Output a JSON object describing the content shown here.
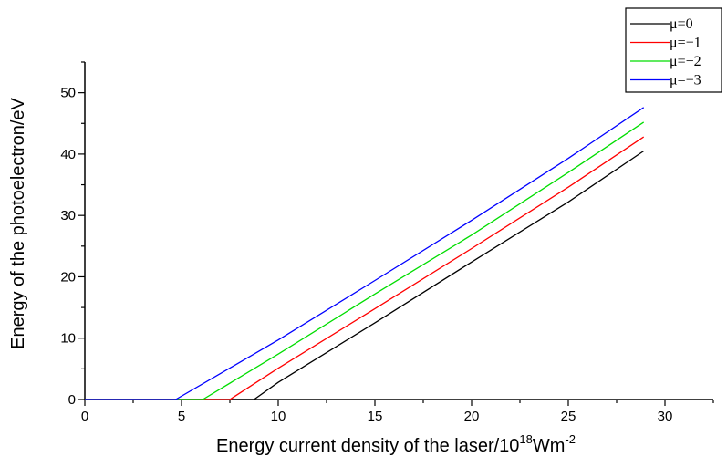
{
  "chart_data": {
    "type": "line",
    "title": "",
    "xlabel": "Energy current density of the laser/10",
    "xlabel_sup1": "18",
    "xlabel_mid": "Wm",
    "xlabel_sup2": "-2",
    "ylabel": "Energy of the photoelectron/eV",
    "xlim": [
      0,
      32.5
    ],
    "ylim": [
      0,
      55
    ],
    "xticks": [
      0,
      5,
      10,
      15,
      20,
      25,
      30
    ],
    "yticks": [
      0,
      10,
      20,
      30,
      40,
      50
    ],
    "legend_position": "top-right",
    "series": [
      {
        "name": "μ=0",
        "color": "#000000",
        "x": [
          0,
          8.75,
          10,
          15,
          20,
          25,
          28.9
        ],
        "y": [
          0,
          0,
          2.8,
          12.5,
          22.4,
          32.2,
          40.5
        ]
      },
      {
        "name": "μ=−1",
        "color": "#ff0000",
        "x": [
          0,
          7.5,
          10,
          15,
          20,
          25,
          28.9
        ],
        "y": [
          0,
          0,
          5.1,
          14.8,
          24.6,
          34.6,
          42.8
        ]
      },
      {
        "name": "μ=−2",
        "color": "#00dd00",
        "x": [
          0,
          6.1,
          10,
          15,
          20,
          25,
          28.9
        ],
        "y": [
          0,
          0,
          7.4,
          17.2,
          26.8,
          37.0,
          45.2
        ]
      },
      {
        "name": "μ=−3",
        "color": "#0000ff",
        "x": [
          0,
          4.7,
          10,
          15,
          20,
          25,
          28.9
        ],
        "y": [
          0,
          0,
          9.7,
          19.4,
          29.2,
          39.3,
          47.6
        ]
      }
    ]
  }
}
